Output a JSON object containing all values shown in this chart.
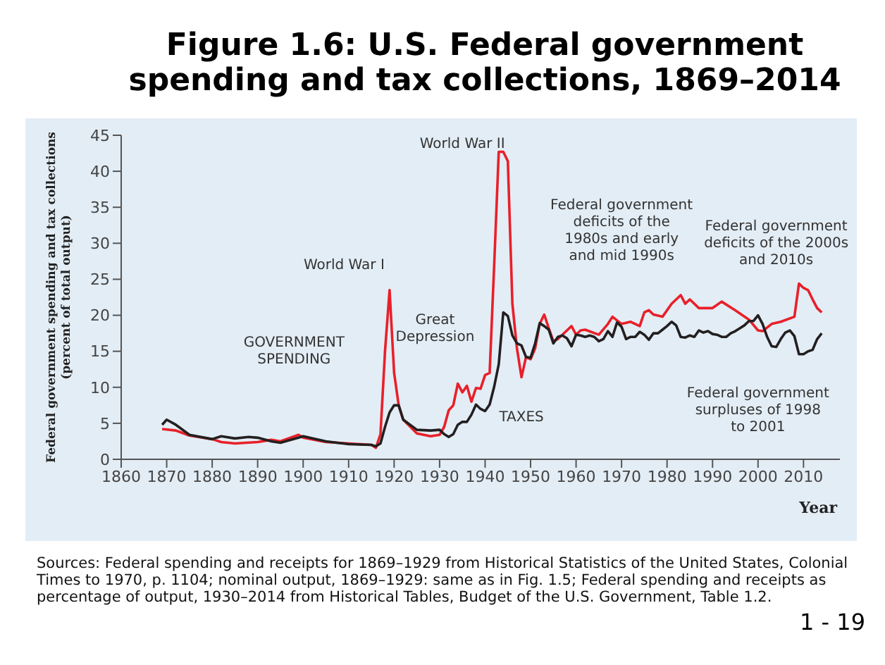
{
  "chart_data": {
    "type": "line",
    "title": "Figure 1.6: U.S. Federal government\nspending and tax collections, 1869–2014",
    "xlabel": "Year",
    "ylabel": "Federal government spending and tax collections\n(percent of total output)",
    "xlim": [
      1860,
      2018
    ],
    "xticks": [
      1860,
      1870,
      1880,
      1890,
      1900,
      1910,
      1920,
      1930,
      1940,
      1950,
      1960,
      1970,
      1980,
      1990,
      2000,
      2010
    ],
    "ylim": [
      0,
      45
    ],
    "yticks": [
      0,
      5,
      10,
      15,
      20,
      25,
      30,
      35,
      40,
      45
    ],
    "grid": false,
    "legend": false,
    "marker": "none",
    "line_style": "solid",
    "series": [
      {
        "name": "GOVERNMENT\nSPENDING",
        "color": "#e8202a",
        "x": [
          1869,
          1872,
          1875,
          1880,
          1882,
          1885,
          1890,
          1893,
          1895,
          1899,
          1900,
          1905,
          1910,
          1915,
          1916,
          1917,
          1918,
          1919,
          1920,
          1921,
          1922,
          1925,
          1928,
          1930,
          1931,
          1932,
          1933,
          1934,
          1935,
          1936,
          1937,
          1938,
          1939,
          1940,
          1941,
          1942,
          1943,
          1944,
          1945,
          1946,
          1947,
          1948,
          1949,
          1950,
          1951,
          1952,
          1953,
          1954,
          1955,
          1956,
          1958,
          1959,
          1960,
          1961,
          1962,
          1965,
          1967,
          1968,
          1970,
          1972,
          1974,
          1975,
          1976,
          1977,
          1979,
          1981,
          1983,
          1984,
          1985,
          1987,
          1990,
          1992,
          1995,
          1998,
          2000,
          2001,
          2003,
          2005,
          2008,
          2009,
          2010,
          2011,
          2012,
          2013,
          2014
        ],
        "values": [
          4.2,
          4.0,
          3.3,
          2.8,
          2.4,
          2.2,
          2.4,
          2.7,
          2.5,
          3.4,
          3.0,
          2.4,
          2.2,
          2.0,
          1.6,
          3.5,
          15,
          23.5,
          12,
          7.5,
          5.5,
          3.6,
          3.2,
          3.4,
          4.5,
          6.8,
          7.5,
          10.5,
          9.3,
          10.2,
          8.0,
          9.9,
          9.8,
          11.7,
          12,
          27,
          42.7,
          42.7,
          41.4,
          21.6,
          15.4,
          11.4,
          14.2,
          13.9,
          15.4,
          18.8,
          20.1,
          18.2,
          16.4,
          16.7,
          17.9,
          18.5,
          17.3,
          17.9,
          18.0,
          17.3,
          18.8,
          19.8,
          18.8,
          19.1,
          18.5,
          20.4,
          20.7,
          20.1,
          19.8,
          21.6,
          22.8,
          21.6,
          22.2,
          21.0,
          21.0,
          21.9,
          20.7,
          19.4,
          17.9,
          17.8,
          18.8,
          19.1,
          19.8,
          24.4,
          23.8,
          23.5,
          22.2,
          21.0,
          20.4
        ]
      },
      {
        "name": "TAXES",
        "color": "#231f20",
        "x": [
          1869,
          1870,
          1872,
          1875,
          1880,
          1882,
          1885,
          1888,
          1890,
          1893,
          1895,
          1899,
          1900,
          1905,
          1910,
          1915,
          1916,
          1917,
          1918,
          1919,
          1920,
          1921,
          1922,
          1925,
          1928,
          1930,
          1931,
          1932,
          1933,
          1934,
          1935,
          1936,
          1937,
          1938,
          1939,
          1940,
          1941,
          1942,
          1943,
          1944,
          1945,
          1946,
          1947,
          1948,
          1949,
          1950,
          1951,
          1952,
          1953,
          1954,
          1955,
          1956,
          1957,
          1958,
          1959,
          1960,
          1961,
          1962,
          1963,
          1964,
          1965,
          1966,
          1967,
          1968,
          1969,
          1970,
          1971,
          1972,
          1973,
          1974,
          1975,
          1976,
          1977,
          1978,
          1979,
          1980,
          1981,
          1982,
          1983,
          1984,
          1985,
          1986,
          1987,
          1988,
          1989,
          1990,
          1991,
          1992,
          1993,
          1994,
          1995,
          1996,
          1997,
          1998,
          1999,
          2000,
          2001,
          2002,
          2003,
          2004,
          2005,
          2006,
          2007,
          2008,
          2009,
          2010,
          2011,
          2012,
          2013,
          2014
        ],
        "values": [
          4.8,
          5.5,
          4.8,
          3.4,
          2.8,
          3.2,
          2.9,
          3.1,
          3.0,
          2.5,
          2.3,
          3.0,
          3.2,
          2.5,
          2.1,
          2.0,
          1.8,
          2.2,
          4.5,
          6.5,
          7.5,
          7.5,
          5.5,
          4.1,
          4.0,
          4.1,
          3.5,
          3.1,
          3.5,
          4.8,
          5.2,
          5.2,
          6.2,
          7.6,
          7.0,
          6.7,
          7.6,
          10.1,
          13.2,
          20.4,
          19.9,
          17.2,
          16.1,
          15.8,
          14.2,
          14.1,
          16.1,
          18.9,
          18.5,
          18.0,
          16.1,
          17.0,
          17.2,
          16.8,
          15.7,
          17.3,
          17.2,
          17.0,
          17.2,
          17.0,
          16.4,
          16.7,
          17.8,
          17.0,
          19.0,
          18.4,
          16.7,
          17.0,
          17.0,
          17.7,
          17.3,
          16.6,
          17.5,
          17.5,
          18.0,
          18.5,
          19.1,
          18.6,
          17.0,
          16.9,
          17.2,
          17.0,
          17.9,
          17.6,
          17.8,
          17.4,
          17.3,
          17.0,
          17.0,
          17.5,
          17.8,
          18.2,
          18.6,
          19.2,
          19.2,
          20.0,
          18.8,
          17.0,
          15.7,
          15.6,
          16.7,
          17.6,
          17.9,
          17.1,
          14.6,
          14.6,
          15.0,
          15.2,
          16.7,
          17.5
        ]
      }
    ],
    "annotations": [
      "World War I",
      "World War II",
      "Great\nDepression",
      "Federal government\ndeficits of the\n1980s and early\nand mid 1990s",
      "Federal government\ndeficits of the 2000s\nand 2010s",
      "Federal government\nsurpluses of 1998\nto 2001",
      "Sources: Federal spending and receipts for 1869–1929 from Historical Statistics of the United States, Colonial Times to 1970, p. 1104; nominal output, 1869–1929: same as in Fig. 1.5; Federal spending and receipts as percentage of output, 1930–2014 from Historical Tables, Budget of the U.S. Government, Table 1.2.",
      "1 - 19"
    ]
  }
}
